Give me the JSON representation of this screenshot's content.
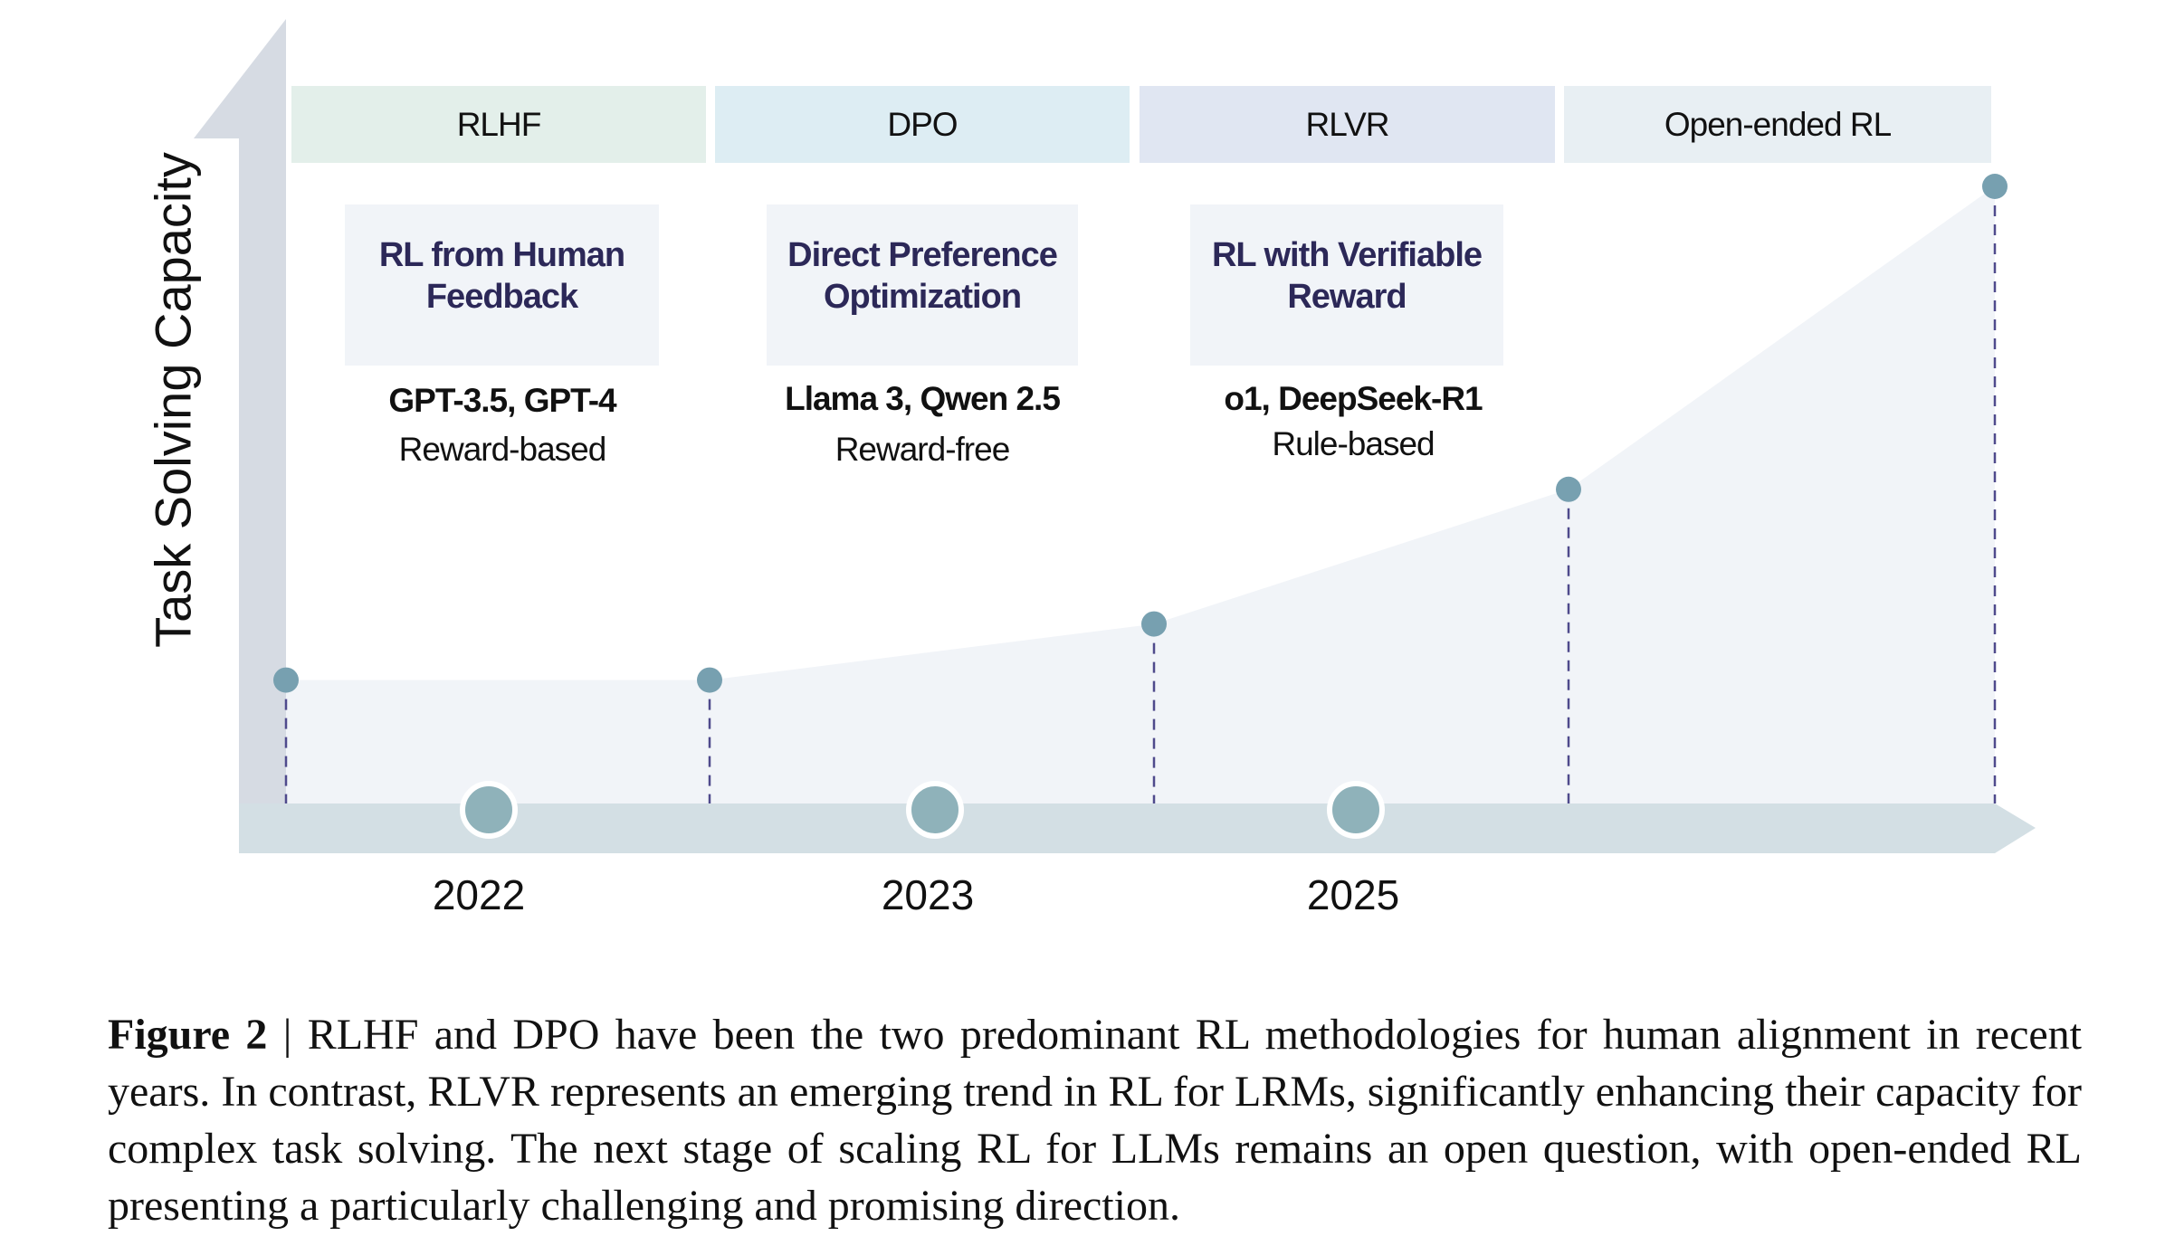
{
  "figure": {
    "y_axis_label": "Task Solving Capacity",
    "stages": [
      {
        "label": "RLHF",
        "title": "RL from Human Feedback",
        "models": "GPT-3.5, GPT-4",
        "type": "Reward-based",
        "color": "#e3efea"
      },
      {
        "label": "DPO",
        "title": "Direct Preference Optimization",
        "models": "Llama 3, Qwen 2.5",
        "type": "Reward-free",
        "color": "#ddedf3"
      },
      {
        "label": "RLVR",
        "title": "RL with Verifiable Reward",
        "models": "o1, DeepSeek-R1",
        "type": "Rule-based",
        "color": "#e0e6f2"
      },
      {
        "label": "Open-ended RL",
        "color": "#e8eff3"
      }
    ],
    "years": [
      "2022",
      "2023",
      "2025"
    ],
    "capacity_points": [
      0.12,
      0.12,
      0.22,
      0.46,
      1.0
    ],
    "colors": {
      "axis": "#d6dbe3",
      "timeline": "#d3dfe4",
      "point": "#77a0b0",
      "dash": "#4f4a8c",
      "fill": "#f1f4f8",
      "year_dot": "#8fb2ba"
    }
  },
  "caption": {
    "label": "Figure 2",
    "separator": " | ",
    "text": "RLHF and DPO have been the two predominant RL methodologies for human alignment in recent years. In contrast, RLVR represents an emerging trend in RL for LRMs, significantly enhancing their capacity for complex task solving.  The next stage of scaling RL for LLMs remains an open question, with open-ended RL presenting a particularly challenging and promising direction."
  }
}
